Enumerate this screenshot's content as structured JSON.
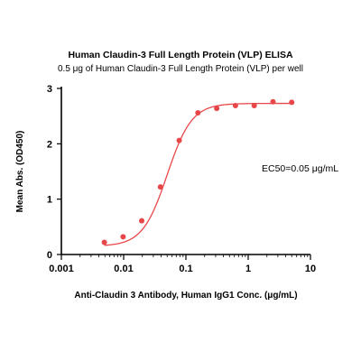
{
  "chart_data": {
    "type": "scatter",
    "title": "Human Claudin-3 Full Length Protein (VLP) ELISA",
    "subtitle": "0.5 μg of Human Claudin-3 Full Length Protein (VLP) per well",
    "xlabel": "Anti-Claudin 3 Antibody, Human IgG1 Conc. (μg/mL)",
    "ylabel": "Mean Abs. (OD450)",
    "x_scale": "log",
    "xlim": [
      0.001,
      10
    ],
    "ylim": [
      0,
      3
    ],
    "x_ticks": [
      0.001,
      0.01,
      0.1,
      1,
      10
    ],
    "x_tick_labels": [
      "0.001",
      "0.01",
      "0.1",
      "1",
      "10"
    ],
    "y_ticks": [
      0,
      1,
      2,
      3
    ],
    "y_tick_labels": [
      "0",
      "1",
      "2",
      "3"
    ],
    "grid": false,
    "annotation": "EC50=0.05 μg/mL",
    "point_color": "#e8474a",
    "curve_color": "#e8474a",
    "series": [
      {
        "x": [
          0.0049,
          0.0098,
          0.0195,
          0.039,
          0.078,
          0.156,
          0.3125,
          0.625,
          1.25,
          2.5,
          5
        ],
        "y": [
          0.22,
          0.32,
          0.61,
          1.22,
          2.06,
          2.56,
          2.64,
          2.69,
          2.69,
          2.76,
          2.75
        ]
      }
    ],
    "fit": {
      "model": "4PL",
      "bottom": 0.15,
      "top": 2.73,
      "ec50": 0.05,
      "hill": 2.2
    }
  }
}
